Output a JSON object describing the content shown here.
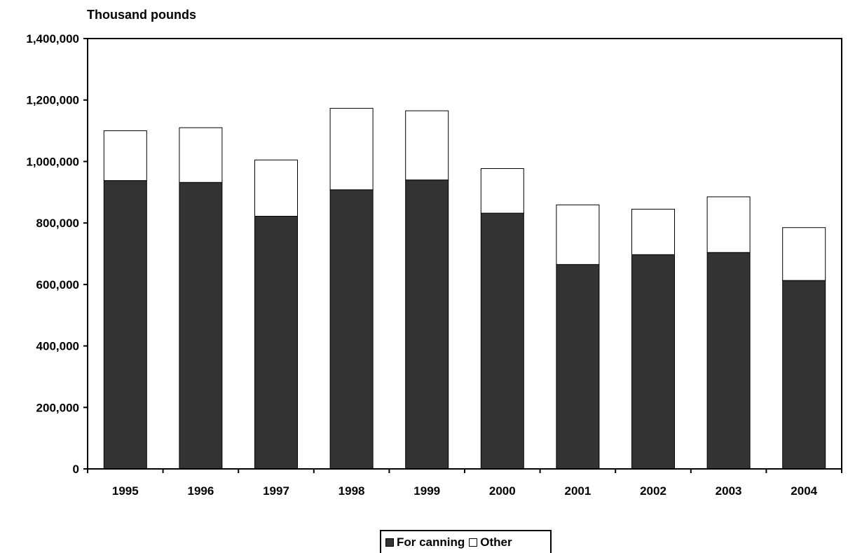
{
  "chart_data": {
    "type": "bar",
    "stacked": true,
    "ylabel": "Thousand pounds",
    "xlabel": "",
    "categories": [
      "1995",
      "1996",
      "1997",
      "1998",
      "1999",
      "2000",
      "2001",
      "2002",
      "2003",
      "2004"
    ],
    "series": [
      {
        "name": "For canning",
        "color": "#333333",
        "values": [
          938000,
          932000,
          822000,
          908000,
          940000,
          832000,
          665000,
          697000,
          704000,
          613000
        ]
      },
      {
        "name": "Other",
        "color": "#ffffff",
        "values": [
          162000,
          178000,
          183000,
          265000,
          225000,
          145000,
          194000,
          148000,
          181000,
          172000
        ]
      }
    ],
    "ylim": [
      0,
      1400000
    ],
    "yticks": [
      0,
      200000,
      400000,
      600000,
      800000,
      1000000,
      1200000,
      1400000
    ],
    "ytick_labels": [
      "0",
      "200,000",
      "400,000",
      "600,000",
      "800,000",
      "1,000,000",
      "1,200,000",
      "1,400,000"
    ],
    "grid": false,
    "legend_position": "bottom-center"
  }
}
